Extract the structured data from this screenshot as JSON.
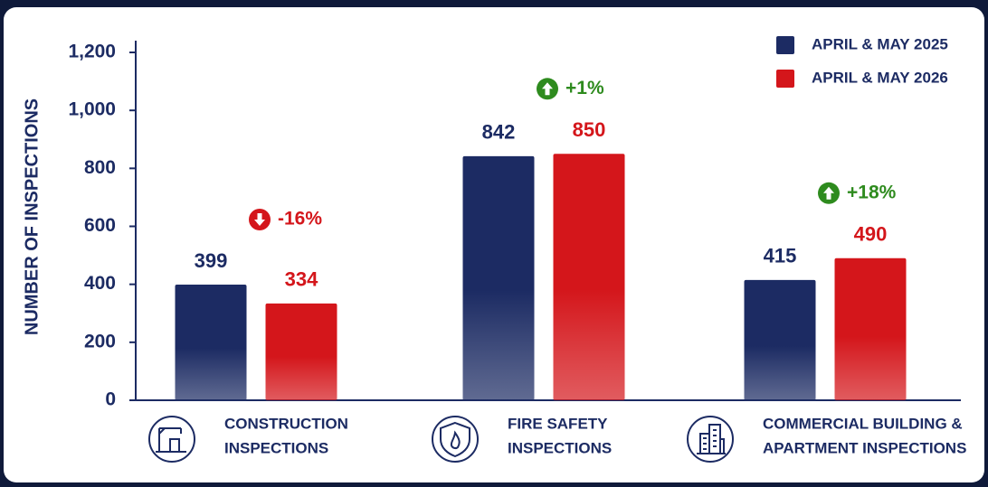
{
  "chart_data": {
    "type": "bar",
    "y_label": "NUMBER OF INSPECTIONS",
    "categories": [
      [
        "CONSTRUCTION",
        "INSPECTIONS"
      ],
      [
        "FIRE SAFETY",
        "INSPECTIONS"
      ],
      [
        "COMMERCIAL BUILDING &",
        "APARTMENT INSPECTIONS"
      ]
    ],
    "series": [
      {
        "name": "APRIL & MAY 2025",
        "color": "#1c2b63",
        "values": [
          399,
          842,
          415
        ]
      },
      {
        "name": "APRIL & MAY 2026",
        "color": "#d4161b",
        "values": [
          334,
          850,
          490
        ]
      }
    ],
    "annotations": [
      {
        "text": "-16%",
        "arrow": "down",
        "color": "#d4161b"
      },
      {
        "text": "+1%",
        "arrow": "up",
        "color": "#2e8b1e"
      },
      {
        "text": "+18%",
        "arrow": "up",
        "color": "#2e8b1e"
      }
    ],
    "ylim": [
      0,
      1200
    ],
    "yticks": [
      0,
      200,
      400,
      600,
      800,
      {
        "value": 1000,
        "label": "1,000"
      },
      {
        "value": 1200,
        "label": "1,200"
      }
    ],
    "legend": "top-right"
  }
}
